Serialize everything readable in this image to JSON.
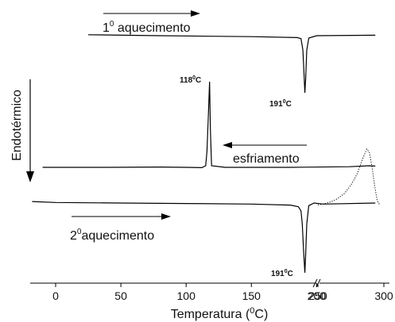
{
  "chart_data": {
    "type": "line",
    "title": "",
    "xlabel": "Temperatura (°C)",
    "ylabel": "Endotérmico",
    "xlim": [
      -18,
      300
    ],
    "x_break": [
      245,
      250
    ],
    "xticks": [
      0,
      50,
      100,
      150,
      200,
      250,
      300
    ],
    "grid": false,
    "annotations": {
      "first_heating": "1° aquecimento",
      "cooling": "esfriamento",
      "second_heating": "2° aquecimento",
      "peak_191_top": "191°C",
      "peak_118": "118°C",
      "peak_191_bottom": "191°C"
    },
    "series": [
      {
        "key": "heating1",
        "points": [
          [
            25,
            0.02
          ],
          [
            80,
            0.0
          ],
          [
            150,
            -0.02
          ],
          [
            185,
            -0.04
          ],
          [
            188,
            -0.06
          ],
          [
            189.5,
            -0.3
          ],
          [
            190.5,
            -0.9
          ],
          [
            191,
            -1.2
          ],
          [
            191.6,
            -0.9
          ],
          [
            192.5,
            -0.3
          ],
          [
            194,
            -0.05
          ],
          [
            200,
            0
          ],
          [
            245,
            0.01
          ]
        ]
      },
      {
        "key": "cooling",
        "points": [
          [
            -10,
            0.0
          ],
          [
            40,
            0.0
          ],
          [
            80,
            0.01
          ],
          [
            100,
            0.0
          ],
          [
            112,
            -0.01
          ],
          [
            115,
            0.05
          ],
          [
            116,
            0.5
          ],
          [
            117,
            1.6
          ],
          [
            118,
            2.7
          ],
          [
            118.6,
            1.2
          ],
          [
            119.5,
            0.05
          ],
          [
            130,
            0.0
          ],
          [
            180,
            0.0
          ],
          [
            225,
            0.02
          ],
          [
            240,
            0.05
          ],
          [
            245,
            0.04
          ]
        ]
      },
      {
        "key": "heating2",
        "points": [
          [
            -18,
            0.03
          ],
          [
            0,
            0.01
          ],
          [
            50,
            0.0
          ],
          [
            100,
            -0.01
          ],
          [
            150,
            -0.02
          ],
          [
            180,
            -0.04
          ],
          [
            186,
            -0.07
          ],
          [
            188,
            -0.15
          ],
          [
            189,
            -0.4
          ],
          [
            190,
            -0.9
          ],
          [
            191,
            -1.35
          ],
          [
            191.6,
            -1.0
          ],
          [
            192.5,
            -0.4
          ],
          [
            194,
            -0.05
          ],
          [
            198,
            0.0
          ],
          [
            205,
            -0.02
          ],
          [
            245,
            0.0
          ]
        ]
      },
      {
        "key": "heating2_dotted",
        "points": [
          [
            250,
            0.02
          ],
          [
            255,
            0.04
          ],
          [
            260,
            0.07
          ],
          [
            265,
            0.12
          ],
          [
            270,
            0.2
          ],
          [
            275,
            0.33
          ],
          [
            280,
            0.52
          ],
          [
            284,
            0.75
          ],
          [
            287,
            0.9
          ],
          [
            289,
            0.85
          ],
          [
            291,
            0.62
          ],
          [
            293,
            0.32
          ],
          [
            295,
            0.08
          ],
          [
            297,
            0.02
          ]
        ]
      }
    ]
  }
}
